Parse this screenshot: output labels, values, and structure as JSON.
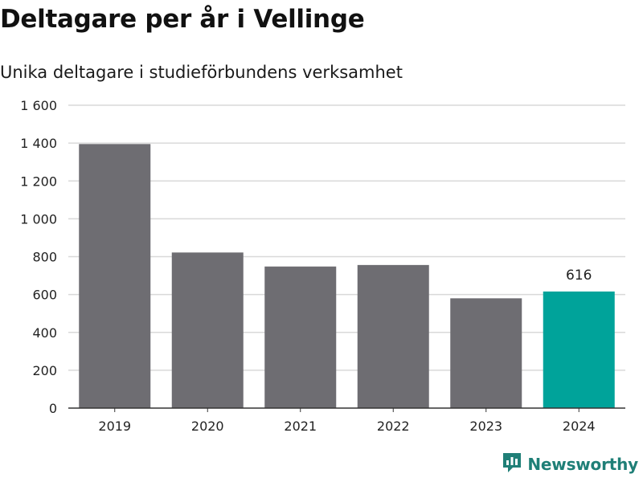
{
  "header": {
    "title": "Deltagare per år i Vellinge",
    "subtitle": "Unika deltagare i studieförbundens verksamhet"
  },
  "brand": {
    "name": "Newsworthy",
    "color": "#1f7f77"
  },
  "colors": {
    "bar": "#6e6d72",
    "highlight": "#00a39a",
    "grid": "#d9d9d9",
    "axis": "#333333"
  },
  "chart_data": {
    "type": "bar",
    "title": "Deltagare per år i Vellinge",
    "subtitle": "Unika deltagare i studieförbundens verksamhet",
    "xlabel": "",
    "ylabel": "",
    "categories": [
      "2019",
      "2020",
      "2021",
      "2022",
      "2023",
      "2024"
    ],
    "values": [
      1395,
      822,
      748,
      756,
      580,
      616
    ],
    "highlight_index": 5,
    "data_labels": [
      {
        "index": 5,
        "text": "616"
      }
    ],
    "ylim": [
      0,
      1600
    ],
    "yticks": [
      0,
      200,
      400,
      600,
      800,
      1000,
      1200,
      1400,
      1600
    ],
    "ytick_labels": [
      "0",
      "200",
      "400",
      "600",
      "800",
      "1 000",
      "1 200",
      "1 400",
      "1 600"
    ],
    "grid": true,
    "legend": "none"
  }
}
